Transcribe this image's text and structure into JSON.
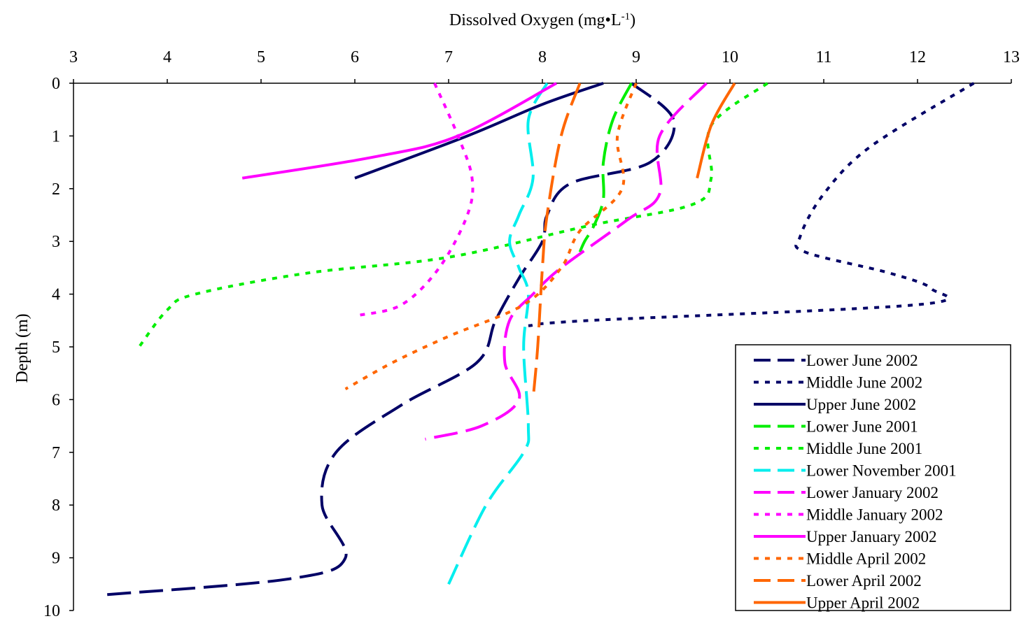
{
  "chart_data": {
    "type": "line",
    "title": "",
    "xlabel": "Dissolved Oxygen (mg•L",
    "xlabel_sup": "-1",
    "xlabel_close": ")",
    "ylabel": "Depth (m)",
    "xlim": [
      3,
      13
    ],
    "ylim": [
      0,
      10
    ],
    "x_axis_position": "top",
    "y_inverted": true,
    "grid": false,
    "legend_position": "bottom-right",
    "x_ticks": [
      "3",
      "4",
      "5",
      "6",
      "7",
      "8",
      "9",
      "10",
      "11",
      "12",
      "13"
    ],
    "y_ticks": [
      "0",
      "1",
      "2",
      "3",
      "4",
      "5",
      "6",
      "7",
      "8",
      "9",
      "10"
    ],
    "series": [
      {
        "name": "Lower June 2002",
        "color": "#000066",
        "dash": "long",
        "points": [
          [
            8.95,
            0
          ],
          [
            9.4,
            0.7
          ],
          [
            9.15,
            1.5
          ],
          [
            8.3,
            1.9
          ],
          [
            8.05,
            2.5
          ],
          [
            8.0,
            3.0
          ],
          [
            7.75,
            3.7
          ],
          [
            7.5,
            4.5
          ],
          [
            7.3,
            5.3
          ],
          [
            6.5,
            6.1
          ],
          [
            5.8,
            7.0
          ],
          [
            5.65,
            8.0
          ],
          [
            5.9,
            9.0
          ],
          [
            5.3,
            9.4
          ],
          [
            3.35,
            9.7
          ]
        ]
      },
      {
        "name": "Middle June 2002",
        "color": "#000066",
        "dash": "dot",
        "points": [
          [
            12.6,
            0
          ],
          [
            11.5,
            1.2
          ],
          [
            11.0,
            2.1
          ],
          [
            10.75,
            2.9
          ],
          [
            10.8,
            3.2
          ],
          [
            11.7,
            3.6
          ],
          [
            12.15,
            3.9
          ],
          [
            12.0,
            4.2
          ],
          [
            8.5,
            4.5
          ],
          [
            7.85,
            4.6
          ]
        ]
      },
      {
        "name": "Upper June 2002",
        "color": "#000066",
        "dash": "solid",
        "points": [
          [
            8.65,
            0
          ],
          [
            8.0,
            0.4
          ],
          [
            7.2,
            1.0
          ],
          [
            6.0,
            1.8
          ]
        ]
      },
      {
        "name": "Lower June 2001",
        "color": "#00ee00",
        "dash": "long",
        "points": [
          [
            8.95,
            0
          ],
          [
            8.75,
            0.7
          ],
          [
            8.65,
            1.5
          ],
          [
            8.65,
            2.2
          ],
          [
            8.55,
            2.7
          ],
          [
            8.45,
            3.0
          ],
          [
            8.4,
            3.2
          ]
        ]
      },
      {
        "name": "Middle June 2001",
        "color": "#00ee00",
        "dash": "dot",
        "points": [
          [
            10.4,
            0
          ],
          [
            9.8,
            0.8
          ],
          [
            9.8,
            1.8
          ],
          [
            9.6,
            2.3
          ],
          [
            8.5,
            2.7
          ],
          [
            7.0,
            3.3
          ],
          [
            5.5,
            3.6
          ],
          [
            4.3,
            4.0
          ],
          [
            4.0,
            4.3
          ],
          [
            3.7,
            5.0
          ]
        ]
      },
      {
        "name": "Lower November 2001",
        "color": "#00eeee",
        "dash": "long",
        "points": [
          [
            8.05,
            0
          ],
          [
            7.85,
            0.7
          ],
          [
            7.9,
            1.8
          ],
          [
            7.75,
            2.5
          ],
          [
            7.65,
            3.0
          ],
          [
            7.75,
            3.5
          ],
          [
            7.85,
            4.0
          ],
          [
            7.8,
            5.0
          ],
          [
            7.85,
            6.5
          ],
          [
            7.8,
            7.0
          ],
          [
            7.4,
            8.0
          ],
          [
            7.0,
            9.5
          ]
        ]
      },
      {
        "name": "Lower January 2002",
        "color": "#ff00ff",
        "dash": "long",
        "points": [
          [
            9.75,
            0
          ],
          [
            9.25,
            1.0
          ],
          [
            9.25,
            2.1
          ],
          [
            8.9,
            2.6
          ],
          [
            8.2,
            3.5
          ],
          [
            7.9,
            4.0
          ],
          [
            7.65,
            4.5
          ],
          [
            7.6,
            5.3
          ],
          [
            7.75,
            6.0
          ],
          [
            7.35,
            6.5
          ],
          [
            6.75,
            6.75
          ]
        ]
      },
      {
        "name": "Middle January 2002",
        "color": "#ff00ff",
        "dash": "dot",
        "points": [
          [
            6.85,
            0
          ],
          [
            7.1,
            1.0
          ],
          [
            7.25,
            1.8
          ],
          [
            7.2,
            2.5
          ],
          [
            6.9,
            3.5
          ],
          [
            6.5,
            4.2
          ],
          [
            6.05,
            4.4
          ]
        ]
      },
      {
        "name": "Upper January 2002",
        "color": "#ff00ff",
        "dash": "solid",
        "points": [
          [
            8.15,
            0
          ],
          [
            7.1,
            1.0
          ],
          [
            6.2,
            1.4
          ],
          [
            4.8,
            1.8
          ]
        ]
      },
      {
        "name": "Middle April 2002",
        "color": "#ff6600",
        "dash": "dot",
        "points": [
          [
            9.0,
            0
          ],
          [
            8.8,
            1.0
          ],
          [
            8.85,
            2.0
          ],
          [
            8.4,
            2.8
          ],
          [
            8.2,
            3.5
          ],
          [
            7.8,
            4.2
          ],
          [
            7.0,
            4.8
          ],
          [
            6.4,
            5.3
          ],
          [
            5.9,
            5.8
          ]
        ]
      },
      {
        "name": "Lower April 2002",
        "color": "#ff6600",
        "dash": "long",
        "points": [
          [
            8.4,
            0
          ],
          [
            8.2,
            1.0
          ],
          [
            8.05,
            2.5
          ],
          [
            8.0,
            3.5
          ],
          [
            7.95,
            5.0
          ],
          [
            7.9,
            6.0
          ]
        ]
      },
      {
        "name": "Upper April 2002",
        "color": "#ff6600",
        "dash": "solid",
        "points": [
          [
            10.05,
            0
          ],
          [
            9.8,
            0.8
          ],
          [
            9.65,
            1.8
          ]
        ]
      }
    ]
  }
}
